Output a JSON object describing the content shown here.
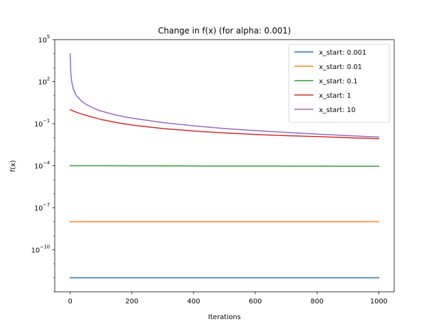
{
  "chart_data": {
    "type": "line",
    "title": "Change in f(x) (for alpha: 0.001)",
    "xlabel": "Iterations",
    "ylabel": "f(x)",
    "xscale": "linear",
    "yscale": "log",
    "xlim": [
      -50,
      1050
    ],
    "ylim": [
      1e-13,
      100000
    ],
    "xticks": [
      0,
      200,
      400,
      600,
      800,
      1000
    ],
    "yticks": [
      {
        "value": 1e-10,
        "base": "10",
        "exp": "−10"
      },
      {
        "value": 1e-07,
        "base": "10",
        "exp": "−7"
      },
      {
        "value": 0.0001,
        "base": "10",
        "exp": "−4"
      },
      {
        "value": 0.1,
        "base": "10",
        "exp": "−1"
      },
      {
        "value": 100,
        "base": "10",
        "exp": "2"
      },
      {
        "value": 100000,
        "base": "10",
        "exp": "5"
      }
    ],
    "grid": false,
    "legend_position": "top-right",
    "series": [
      {
        "name": "x_start: 0.001",
        "color": "#1f77b4",
        "x": [
          0,
          200,
          400,
          600,
          800,
          1000
        ],
        "y": [
          1e-12,
          1e-12,
          1e-12,
          1e-12,
          1e-12,
          1e-12
        ]
      },
      {
        "name": "x_start: 0.01",
        "color": "#ff7f0e",
        "x": [
          0,
          200,
          400,
          600,
          800,
          1000
        ],
        "y": [
          1e-08,
          1e-08,
          1e-08,
          1e-08,
          1e-08,
          1e-08
        ]
      },
      {
        "name": "x_start: 0.1",
        "color": "#2ca02c",
        "x": [
          0,
          200,
          400,
          600,
          800,
          1000
        ],
        "y": [
          0.0001,
          9.8e-05,
          9.6e-05,
          9.4e-05,
          9.3e-05,
          9.2e-05
        ]
      },
      {
        "name": "x_start: 1",
        "color": "#d62728",
        "x": [
          0,
          10,
          25,
          50,
          100,
          150,
          200,
          300,
          400,
          500,
          600,
          700,
          800,
          900,
          1000
        ],
        "y": [
          1.0,
          0.8,
          0.6,
          0.4,
          0.2,
          0.12,
          0.08,
          0.045,
          0.03,
          0.022,
          0.017,
          0.014,
          0.012,
          0.01,
          0.0085
        ]
      },
      {
        "name": "x_start: 10",
        "color": "#9467bd",
        "x": [
          0,
          2,
          5,
          10,
          20,
          35,
          50,
          75,
          100,
          150,
          200,
          300,
          400,
          500,
          600,
          700,
          800,
          900,
          1000
        ],
        "y": [
          10000,
          400,
          100,
          30,
          10,
          4.5,
          2.5,
          1.3,
          0.8,
          0.4,
          0.25,
          0.12,
          0.07,
          0.045,
          0.032,
          0.024,
          0.018,
          0.014,
          0.011
        ]
      }
    ]
  }
}
